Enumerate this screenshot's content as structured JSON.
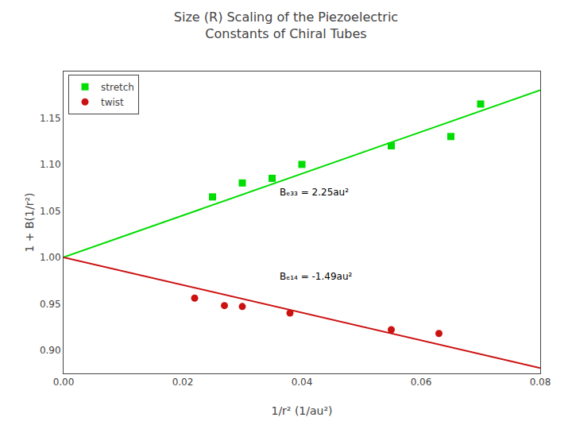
{
  "chart_data": {
    "type": "scatter",
    "title": "Size (R) Scaling of the Piezoelectric\nConstants of Chiral Tubes",
    "x_label": "1/r² (1/au²)",
    "y_label": "1 + B(1/r²)",
    "series": [
      {
        "type": "line",
        "color": "#00DD00",
        "line_style": "solid",
        "x": [
          0,
          0.08
        ],
        "values": [
          1,
          1.18
        ]
      },
      {
        "type": "line",
        "color": "#CC1111",
        "line_style": "solid",
        "x": [
          0,
          0.08
        ],
        "values": [
          1,
          0.8808
        ]
      },
      {
        "type": "scatter",
        "name": "stretch",
        "color": "#00DD00",
        "marker": "square",
        "x": [
          0.025,
          0.03,
          0.035,
          0.04,
          0.055,
          0.065,
          0.07
        ],
        "values": [
          1.065,
          1.08,
          1.085,
          1.1,
          1.12,
          1.13,
          1.165
        ]
      },
      {
        "type": "scatter",
        "name": "twist",
        "color": "#CC1111",
        "marker": "circle",
        "x": [
          0.022,
          0.027,
          0.03,
          0.038,
          0.055,
          0.063
        ],
        "values": [
          0.956,
          0.948,
          0.947,
          0.94,
          0.922,
          0.918
        ]
      }
    ],
    "annotations": [
      {
        "text": "Bₑ₃₃ = 2.25au²",
        "x": 0.036,
        "y": 1.062
      },
      {
        "text": "Bₑ₁₄ = -1.49au²",
        "x": 0.036,
        "y": 0.972
      }
    ],
    "xlim": [
      0,
      0.08
    ],
    "ylim": [
      0.875,
      1.2
    ],
    "xticks": [
      {
        "value": 0,
        "label": "0.00"
      },
      0.02,
      0.04,
      0.06,
      0.08
    ],
    "yticks": [
      {
        "value": 0.9,
        "label": "0.90"
      },
      0.95,
      {
        "value": 1.0,
        "label": "1.00"
      },
      1.05,
      {
        "value": 1.1,
        "label": "1.10"
      },
      1.15
    ],
    "grid": false,
    "legend": "upper left"
  }
}
